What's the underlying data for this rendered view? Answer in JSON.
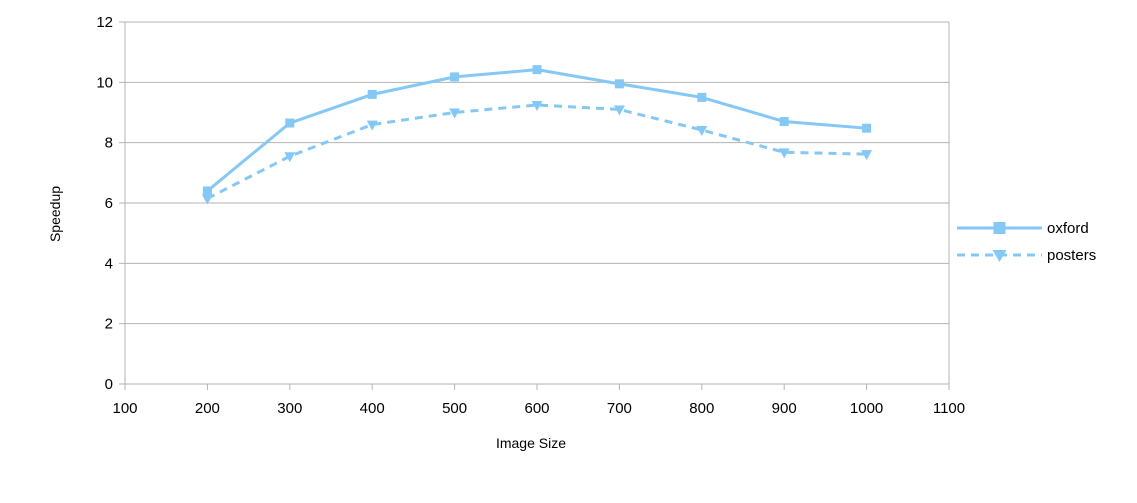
{
  "chart_data": {
    "type": "line",
    "xlabel": "Image Size",
    "ylabel": "Speedup",
    "xlim": [
      100,
      1100
    ],
    "ylim": [
      0,
      12
    ],
    "x_ticks": [
      100,
      200,
      300,
      400,
      500,
      600,
      700,
      800,
      900,
      1000,
      1100
    ],
    "y_ticks": [
      0,
      2,
      4,
      6,
      8,
      10,
      12
    ],
    "grid": "horizontal",
    "legend_position": "right",
    "x": [
      200,
      300,
      400,
      500,
      600,
      700,
      800,
      900,
      1000
    ],
    "series": [
      {
        "name": "oxford",
        "values": [
          6.4,
          8.65,
          9.6,
          10.18,
          10.42,
          9.95,
          9.5,
          8.7,
          8.48
        ],
        "color": "#85c8f5",
        "line_style": "solid",
        "marker": "square"
      },
      {
        "name": "posters",
        "values": [
          6.15,
          7.55,
          8.6,
          9.0,
          9.25,
          9.1,
          8.42,
          7.68,
          7.62
        ],
        "color": "#85c8f5",
        "line_style": "dashed",
        "marker": "triangle-down"
      }
    ]
  }
}
